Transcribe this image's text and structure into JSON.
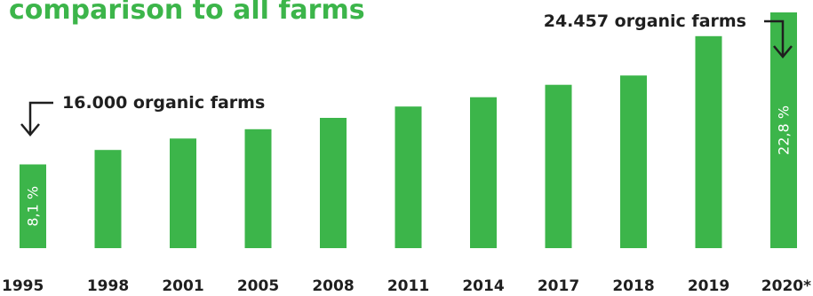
{
  "title": "comparison to all farms",
  "chart_data": {
    "type": "bar",
    "categories": [
      "1995",
      "1998",
      "2001",
      "2005",
      "2008",
      "2011",
      "2014",
      "2017",
      "2018",
      "2019",
      "2020*"
    ],
    "values": [
      8.1,
      9.5,
      10.6,
      11.5,
      12.6,
      13.7,
      14.6,
      15.8,
      16.7,
      20.5,
      22.8
    ],
    "data_labels": [
      {
        "index": 0,
        "text": "8,1 %"
      },
      {
        "index": 10,
        "text": "22,8 %"
      }
    ],
    "annotations": [
      {
        "index": 0,
        "text": "16.000 organic farms"
      },
      {
        "index": 10,
        "text": "24.457 organic farms"
      }
    ],
    "ylim": [
      0,
      24
    ],
    "grid": false,
    "bar_color": "#3cb54a"
  }
}
